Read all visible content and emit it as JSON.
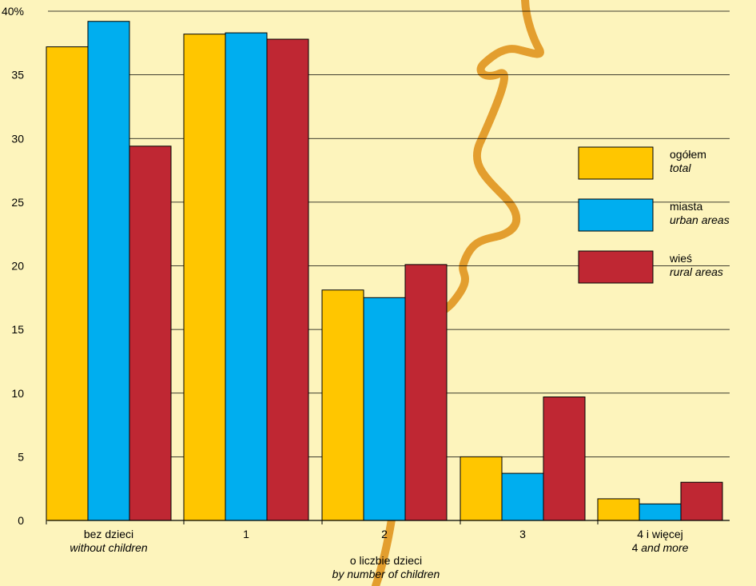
{
  "chart_data": {
    "type": "bar",
    "categories": [
      {
        "line1": "bez dzieci",
        "line2": "without children"
      },
      {
        "line1": "1",
        "line2": ""
      },
      {
        "line1": "2",
        "line2": ""
      },
      {
        "line1": "3",
        "line2": ""
      },
      {
        "line1": "4 i więcej",
        "line2_prefix": "4",
        "line2": "and more"
      }
    ],
    "series": [
      {
        "name": "ogółem",
        "name_en": "total",
        "color": "#FFC600",
        "values": [
          37.2,
          38.2,
          18.1,
          5.0,
          1.7
        ]
      },
      {
        "name": "miasta",
        "name_en": "urban areas",
        "color": "#00AEEF",
        "values": [
          39.2,
          38.3,
          17.5,
          3.7,
          1.3
        ]
      },
      {
        "name": "wieś",
        "name_en": "rural areas",
        "color": "#BF2733",
        "values": [
          29.4,
          37.8,
          20.1,
          9.7,
          3.0
        ]
      }
    ],
    "ylim": [
      0,
      40
    ],
    "yticks": [
      "0",
      "5",
      "10",
      "15",
      "20",
      "25",
      "30",
      "35",
      "40%"
    ],
    "xlabel": "o liczbie dzieci",
    "xlabel_en": "by number of children",
    "ylabel": "",
    "grid": true,
    "legend_position": "right",
    "background_color": "#FDF4BC",
    "decoration_color": "#E39E2E"
  }
}
